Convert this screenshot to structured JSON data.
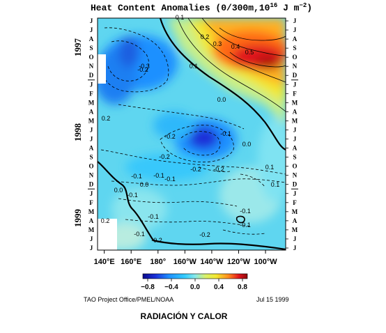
{
  "chart_data": {
    "type": "heatmap",
    "title_main": "Heat Content Anomalies (0/300m,10",
    "title_exp": "16",
    "title_tail": " J m",
    "title_unit_exp": "−2",
    "title_close": ")",
    "x_ticks": [
      "140°E",
      "160°E",
      "180°",
      "160°W",
      "140°W",
      "120°W",
      "100°W"
    ],
    "x_range": [
      135,
      275
    ],
    "y_years": [
      "1997",
      "1998",
      "1999"
    ],
    "y_months": [
      "J",
      "J",
      "A",
      "S",
      "O",
      "N",
      "D",
      "J",
      "F",
      "M",
      "A",
      "M",
      "J",
      "J",
      "A",
      "S",
      "O",
      "N",
      "D",
      "J",
      "F",
      "M",
      "A",
      "M",
      "J",
      "J"
    ],
    "colorbar_ticks": [
      "−0.8",
      "−0.4",
      "0.0",
      "0.4",
      "0.8"
    ],
    "colorbar_range": [
      -0.8,
      0.8
    ],
    "contour_labels": [
      "0.1",
      "0.2",
      "0.3",
      "0.4",
      "0.5",
      "0.1",
      "0.0",
      "-0.2",
      "-0.3",
      "0.2",
      "-0.1",
      "0.0",
      "-0.2",
      "-0.2",
      "-0.1",
      "-0.2",
      "-0.2",
      "-0.1",
      "0.0",
      "0.0",
      "-0.1",
      "0.2",
      "-0.2",
      "-0.2",
      "-0.1",
      "0.1",
      "0.1",
      "-0.1",
      "-0.1",
      "-0.1",
      "-0.1"
    ]
  },
  "credit": {
    "left": "TAO Project Office/PMEL/NOAA",
    "right": "Jul 15 1999"
  },
  "caption": "RADIACIÓN Y CALOR",
  "colors": {
    "deep_blue": "#1a2fd8",
    "blue": "#1e90ff",
    "cyan": "#33ccff",
    "light_cyan": "#7fe3f2",
    "yellow": "#f2e830",
    "orange": "#ff8a1e",
    "red": "#e0141e"
  }
}
